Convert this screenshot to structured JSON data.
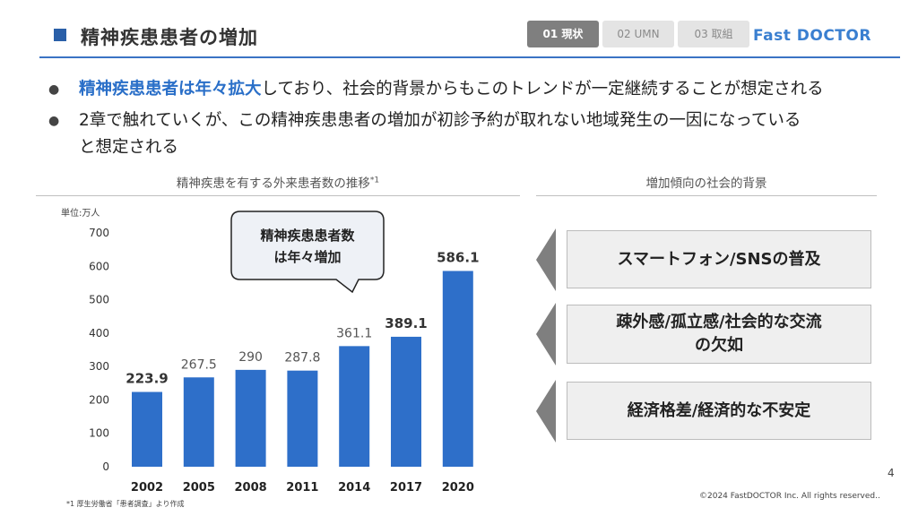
{
  "header": {
    "title": "精神疾患患者の増加",
    "tabs": [
      {
        "label": "01 現状",
        "active": true
      },
      {
        "label": "02 UMN",
        "active": false
      },
      {
        "label": "03 取組",
        "active": false
      }
    ],
    "logo": "Fast DOCTOR",
    "accent_color": "#3a73c4"
  },
  "bullets": [
    {
      "highlight": "精神疾患患者は年々拡大",
      "rest": "しており、社会的背景からもこのトレンドが一定継続することが想定される"
    },
    {
      "line1": "2章で触れていくが、この精神疾患患者の増加が初診予約が取れない地域発生の一因になっている",
      "line2": "と想定される"
    }
  ],
  "chart_section": {
    "title": "精神疾患を有する外来患者数の推移",
    "title_note": "*1"
  },
  "chart_data": {
    "type": "bar",
    "unit_label": "単位:万人",
    "categories": [
      "2002",
      "2005",
      "2008",
      "2011",
      "2014",
      "2017",
      "2020"
    ],
    "values": [
      223.9,
      267.5,
      290,
      287.8,
      361.1,
      389.1,
      586.1
    ],
    "value_labels": [
      "223.9",
      "267.5",
      "290",
      "287.8",
      "361.1",
      "389.1",
      "586.1"
    ],
    "bold_labels": [
      true,
      false,
      false,
      false,
      false,
      true,
      true
    ],
    "ylim": [
      0,
      700
    ],
    "yticks": [
      "0",
      "100",
      "200",
      "300",
      "400",
      "500",
      "600",
      "700"
    ],
    "bar_color": "#2e6fc9",
    "grid": false,
    "callout": {
      "line1": "精神疾患患者数",
      "line2": "は年々増加"
    }
  },
  "background_section": {
    "title": "増加傾向の社会的背景",
    "items": [
      {
        "line1": "スマートフォン/SNSの普及",
        "line2": ""
      },
      {
        "line1": "疎外感/孤立感/社会的な交流",
        "line2": "の欠如"
      },
      {
        "line1": "経済格差/経済的な不安定",
        "line2": ""
      }
    ]
  },
  "footer": {
    "page_number": "4",
    "copyright": "©2024 FastDOCTOR Inc. All rights reserved..",
    "footnote": "*1 厚生労働省「患者調査」より作成"
  }
}
